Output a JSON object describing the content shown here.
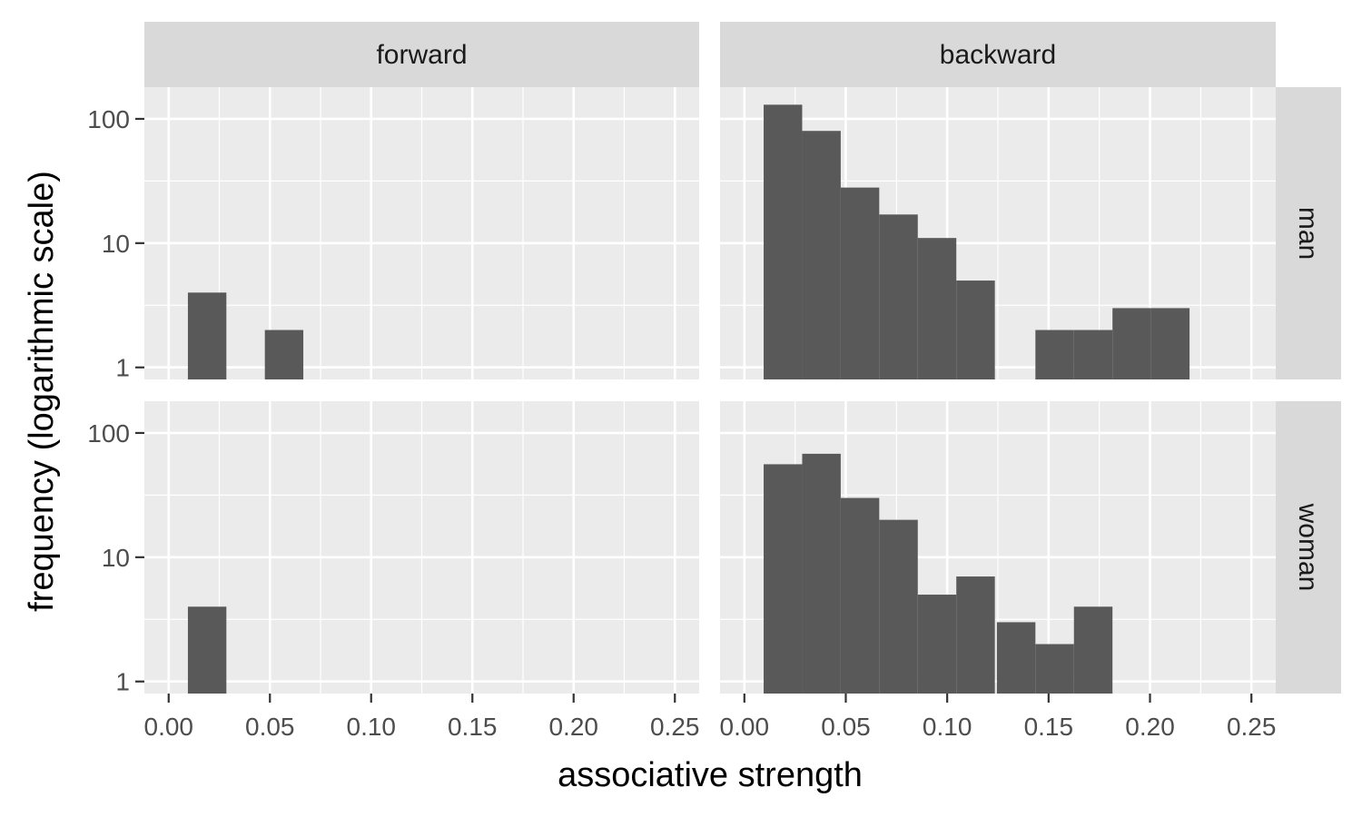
{
  "chart_data": {
    "type": "bar",
    "subtype": "faceted-histogram",
    "xlabel": "associative strength",
    "ylabel": "frequency (logarithmic scale)",
    "y_scale": "log10",
    "xlim": [
      -0.012,
      0.262
    ],
    "ylim": [
      0.8,
      180
    ],
    "x_ticks": [
      0.0,
      0.05,
      0.1,
      0.15,
      0.2,
      0.25
    ],
    "x_tick_labels": [
      "0.00",
      "0.05",
      "0.10",
      "0.15",
      "0.20",
      "0.25"
    ],
    "y_ticks": [
      1,
      10,
      100
    ],
    "y_tick_labels": [
      "1",
      "10",
      "100"
    ],
    "bin_width": 0.019,
    "column_strips": [
      "forward",
      "backward"
    ],
    "row_strips": [
      "man",
      "woman"
    ],
    "grid": true,
    "bar_color": "#595959",
    "panel_background": "#ebebeb",
    "strip_background": "#d9d9d9",
    "panels": [
      {
        "direction": "forward",
        "gender": "man",
        "bins": [
          {
            "x": 0.019,
            "count": 4
          },
          {
            "x": 0.057,
            "count": 2
          }
        ]
      },
      {
        "direction": "backward",
        "gender": "man",
        "bins": [
          {
            "x": 0.019,
            "count": 130
          },
          {
            "x": 0.038,
            "count": 80
          },
          {
            "x": 0.057,
            "count": 28
          },
          {
            "x": 0.076,
            "count": 17
          },
          {
            "x": 0.095,
            "count": 11
          },
          {
            "x": 0.114,
            "count": 5
          },
          {
            "x": 0.153,
            "count": 2
          },
          {
            "x": 0.172,
            "count": 2
          },
          {
            "x": 0.191,
            "count": 3
          },
          {
            "x": 0.21,
            "count": 3
          }
        ]
      },
      {
        "direction": "forward",
        "gender": "woman",
        "bins": [
          {
            "x": 0.019,
            "count": 4
          }
        ]
      },
      {
        "direction": "backward",
        "gender": "woman",
        "bins": [
          {
            "x": 0.019,
            "count": 56
          },
          {
            "x": 0.038,
            "count": 68
          },
          {
            "x": 0.057,
            "count": 30
          },
          {
            "x": 0.076,
            "count": 20
          },
          {
            "x": 0.095,
            "count": 5
          },
          {
            "x": 0.114,
            "count": 7
          },
          {
            "x": 0.134,
            "count": 3
          },
          {
            "x": 0.153,
            "count": 2
          },
          {
            "x": 0.172,
            "count": 4
          }
        ]
      }
    ]
  }
}
